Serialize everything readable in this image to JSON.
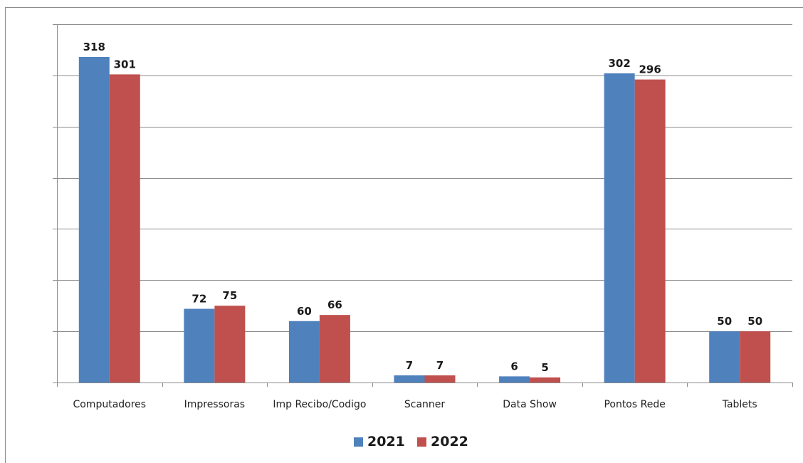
{
  "chart_data": {
    "type": "bar",
    "categories": [
      "Computadores",
      "Impressoras",
      "Imp Recibo/Codigo",
      "Scanner",
      "Data Show",
      "Pontos Rede",
      "Tablets"
    ],
    "series": [
      {
        "name": "2021",
        "values": [
          318,
          72,
          60,
          7,
          6,
          302,
          50
        ],
        "color": "#4f81bd"
      },
      {
        "name": "2022",
        "values": [
          301,
          75,
          66,
          7,
          5,
          296,
          50
        ],
        "color": "#c0504d"
      }
    ],
    "ylim": [
      0,
      350
    ],
    "ygrid_step": 50,
    "grid": true,
    "legend_position": "bottom"
  }
}
